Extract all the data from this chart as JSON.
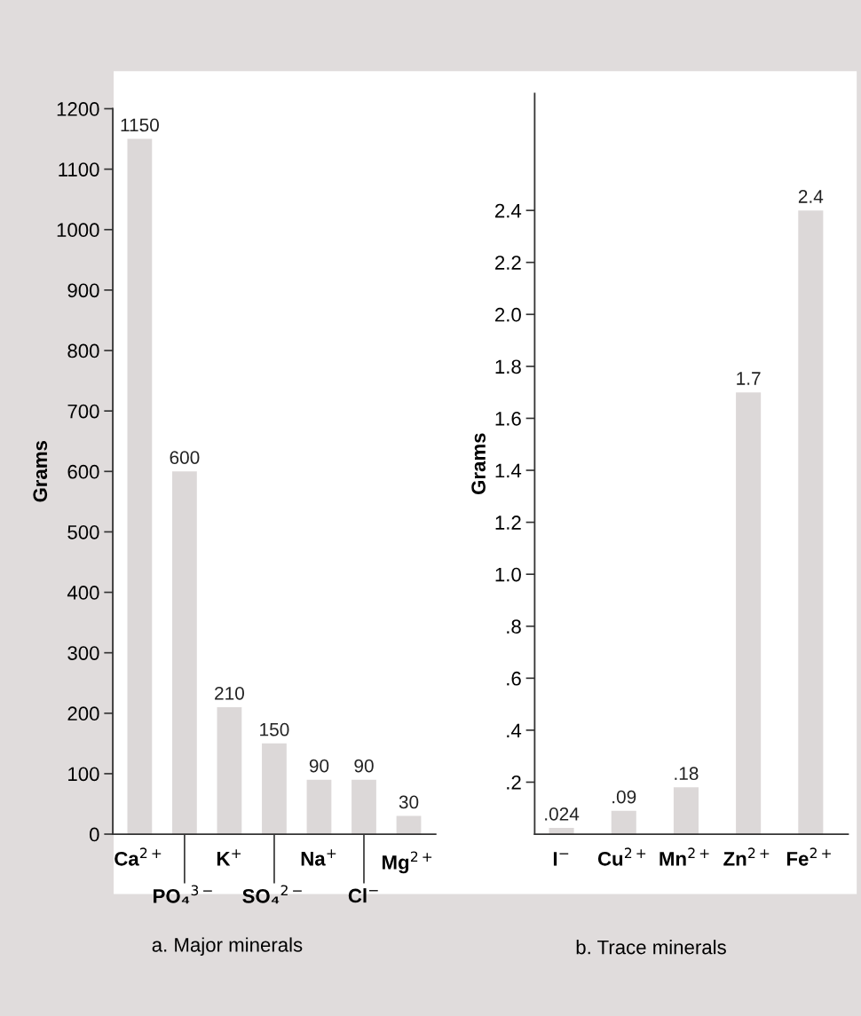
{
  "chart_data": [
    {
      "type": "bar",
      "title": "a. Major minerals",
      "ylabel": "Grams",
      "categories": [
        "Ca$^{2+}$",
        "PO₄$^{3−}$",
        "K$^{+}$",
        "SO₄$^{2−}$",
        "Na$^{+}$",
        "Cl$^{−}$",
        "Mg$^{2+}$"
      ],
      "values": [
        1150,
        600,
        210,
        150,
        90,
        90,
        30
      ],
      "color": "#dcd8d8",
      "data_labels": true,
      "ylim": [
        0,
        1200
      ],
      "yticks": [
        0,
        100,
        200,
        300,
        400,
        500,
        600,
        700,
        800,
        900,
        1000,
        1100,
        1200
      ],
      "grid": false,
      "legend": false
    },
    {
      "type": "bar",
      "title": "b. Trace minerals",
      "ylabel": "Grams",
      "categories": [
        "I$^{−}$",
        "Cu$^{2+}$",
        "Mn$^{2+}$",
        "Zn$^{2+}$",
        "Fe$^{2+}$"
      ],
      "values": [
        0.024,
        0.09,
        0.18,
        1.7,
        2.4
      ],
      "color": "#dcd8d8",
      "value_labels": [
        ".024",
        ".09",
        ".18",
        "1.7",
        "2.4"
      ],
      "ylim": [
        0,
        2.85
      ],
      "yticks": [
        {
          "value": 0.2,
          "label": ".2"
        },
        {
          "value": 0.4,
          "label": ".4"
        },
        {
          "value": 0.6,
          "label": ".6"
        },
        {
          "value": 0.8,
          "label": ".8"
        },
        {
          "value": 1.0,
          "label": "1.0"
        },
        {
          "value": 1.2,
          "label": "1.2"
        },
        {
          "value": 1.4,
          "label": "1.4"
        },
        {
          "value": 1.6,
          "label": "1.6"
        },
        {
          "value": 1.8,
          "label": "1.8"
        },
        {
          "value": 2.0,
          "label": "2.0"
        },
        {
          "value": 2.2,
          "label": "2.2"
        },
        {
          "value": 2.4,
          "label": "2.4"
        }
      ],
      "grid": false,
      "legend": false
    }
  ]
}
